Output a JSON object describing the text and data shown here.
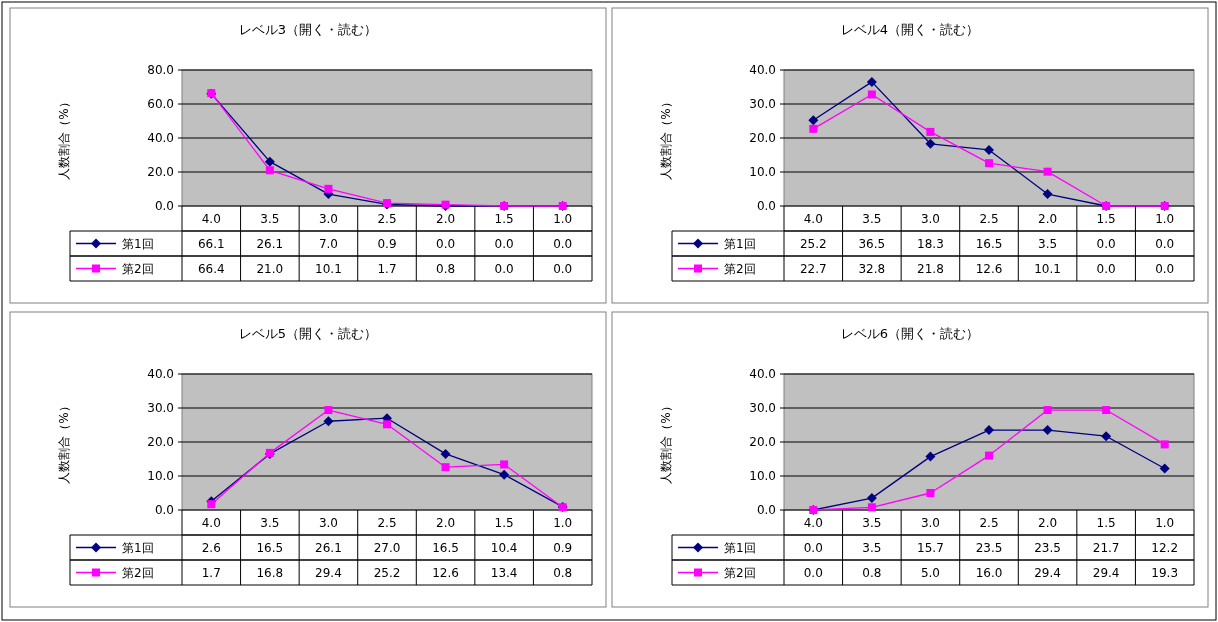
{
  "chart_data": [
    {
      "type": "line",
      "title": "レベル3（開く・読む）",
      "ylabel": "人数割合（%）",
      "categories": [
        "4.0",
        "3.5",
        "3.0",
        "2.5",
        "2.0",
        "1.5",
        "1.0"
      ],
      "ylim": [
        0,
        80
      ],
      "yticks": [
        {
          "value": 0,
          "label": "0.0"
        },
        {
          "value": 20,
          "label": "20.0"
        },
        {
          "value": 40,
          "label": "40.0"
        },
        {
          "value": 60,
          "label": "60.0"
        },
        {
          "value": 80,
          "label": "80.0"
        }
      ],
      "grid": "y",
      "legend": "bottom left",
      "series": [
        {
          "name": "第1回",
          "color": "#000080",
          "marker": "diamond",
          "values": [
            66.1,
            26.1,
            7.0,
            0.9,
            0.0,
            0.0,
            0.0
          ],
          "value_labels": [
            "66.1",
            "26.1",
            "7.0",
            "0.9",
            "0.0",
            "0.0",
            "0.0"
          ]
        },
        {
          "name": "第2回",
          "color": "#ff00ff",
          "marker": "square",
          "values": [
            66.4,
            21.0,
            10.1,
            1.7,
            0.8,
            0.0,
            0.0
          ],
          "value_labels": [
            "66.4",
            "21.0",
            "10.1",
            "1.7",
            "0.8",
            "0.0",
            "0.0"
          ]
        }
      ]
    },
    {
      "type": "line",
      "title": "レベル4（開く・読む）",
      "ylabel": "人数割合（%）",
      "categories": [
        "4.0",
        "3.5",
        "3.0",
        "2.5",
        "2.0",
        "1.5",
        "1.0"
      ],
      "ylim": [
        0,
        40
      ],
      "yticks": [
        {
          "value": 0,
          "label": "0.0"
        },
        {
          "value": 10,
          "label": "10.0"
        },
        {
          "value": 20,
          "label": "20.0"
        },
        {
          "value": 30,
          "label": "30.0"
        },
        {
          "value": 40,
          "label": "40.0"
        }
      ],
      "grid": "y",
      "legend": "bottom left",
      "series": [
        {
          "name": "第1回",
          "color": "#000080",
          "marker": "diamond",
          "values": [
            25.2,
            36.5,
            18.3,
            16.5,
            3.5,
            0.0,
            0.0
          ],
          "value_labels": [
            "25.2",
            "36.5",
            "18.3",
            "16.5",
            "3.5",
            "0.0",
            "0.0"
          ]
        },
        {
          "name": "第2回",
          "color": "#ff00ff",
          "marker": "square",
          "values": [
            22.7,
            32.8,
            21.8,
            12.6,
            10.1,
            0.0,
            0.0
          ],
          "value_labels": [
            "22.7",
            "32.8",
            "21.8",
            "12.6",
            "10.1",
            "0.0",
            "0.0"
          ]
        }
      ]
    },
    {
      "type": "line",
      "title": "レベル5（開く・読む）",
      "ylabel": "人数割合（%）",
      "categories": [
        "4.0",
        "3.5",
        "3.0",
        "2.5",
        "2.0",
        "1.5",
        "1.0"
      ],
      "ylim": [
        0,
        40
      ],
      "yticks": [
        {
          "value": 0,
          "label": "0.0"
        },
        {
          "value": 10,
          "label": "10.0"
        },
        {
          "value": 20,
          "label": "20.0"
        },
        {
          "value": 30,
          "label": "30.0"
        },
        {
          "value": 40,
          "label": "40.0"
        }
      ],
      "grid": "y",
      "legend": "bottom left",
      "series": [
        {
          "name": "第1回",
          "color": "#000080",
          "marker": "diamond",
          "values": [
            2.6,
            16.5,
            26.1,
            27.0,
            16.5,
            10.4,
            0.9
          ],
          "value_labels": [
            "2.6",
            "16.5",
            "26.1",
            "27.0",
            "16.5",
            "10.4",
            "0.9"
          ]
        },
        {
          "name": "第2回",
          "color": "#ff00ff",
          "marker": "square",
          "values": [
            1.7,
            16.8,
            29.4,
            25.2,
            12.6,
            13.4,
            0.8
          ],
          "value_labels": [
            "1.7",
            "16.8",
            "29.4",
            "25.2",
            "12.6",
            "13.4",
            "0.8"
          ]
        }
      ]
    },
    {
      "type": "line",
      "title": "レベル6（開く・読む）",
      "ylabel": "人数割合（%）",
      "categories": [
        "4.0",
        "3.5",
        "3.0",
        "2.5",
        "2.0",
        "1.5",
        "1.0"
      ],
      "ylim": [
        0,
        40
      ],
      "yticks": [
        {
          "value": 0,
          "label": "0.0"
        },
        {
          "value": 10,
          "label": "10.0"
        },
        {
          "value": 20,
          "label": "20.0"
        },
        {
          "value": 30,
          "label": "30.0"
        },
        {
          "value": 40,
          "label": "40.0"
        }
      ],
      "grid": "y",
      "legend": "bottom left",
      "series": [
        {
          "name": "第1回",
          "color": "#000080",
          "marker": "diamond",
          "values": [
            0.0,
            3.5,
            15.7,
            23.5,
            23.5,
            21.7,
            12.2
          ],
          "value_labels": [
            "0.0",
            "3.5",
            "15.7",
            "23.5",
            "23.5",
            "21.7",
            "12.2"
          ]
        },
        {
          "name": "第2回",
          "color": "#ff00ff",
          "marker": "square",
          "values": [
            0.0,
            0.8,
            5.0,
            16.0,
            29.4,
            29.4,
            19.3
          ],
          "value_labels": [
            "0.0",
            "0.8",
            "5.0",
            "16.0",
            "29.4",
            "29.4",
            "19.3"
          ]
        }
      ]
    }
  ]
}
